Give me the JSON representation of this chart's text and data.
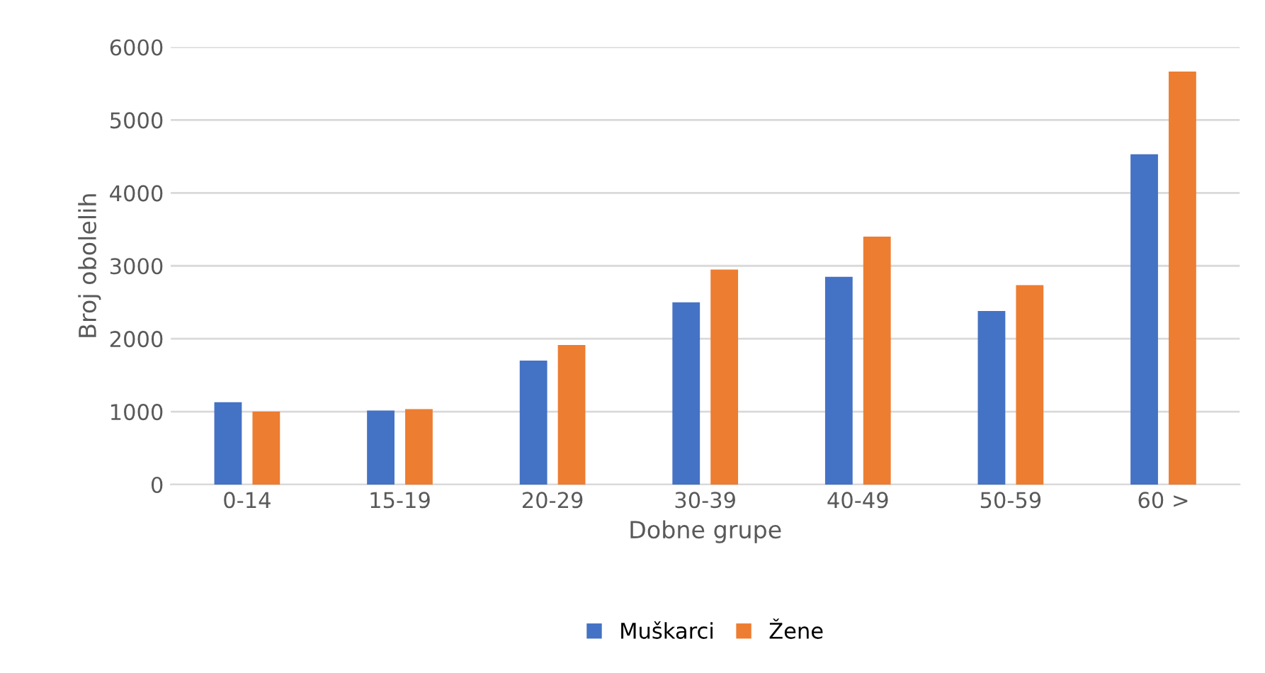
{
  "chart_data": {
    "type": "bar",
    "xlabel": "Dobne grupe",
    "ylabel": "Broj obolelih",
    "categories": [
      "0-14",
      "15-19",
      "20-29",
      "30-39",
      "40-49",
      "50-59",
      "60 >"
    ],
    "series": [
      {
        "name": "Muškarci",
        "color": "#4472c4",
        "values": [
          1130,
          1015,
          1700,
          2500,
          2850,
          2380,
          4530
        ]
      },
      {
        "name": "Žene",
        "color": "#ed7d31",
        "values": [
          1000,
          1035,
          1915,
          2950,
          3400,
          2735,
          5665
        ]
      }
    ],
    "ylim": [
      0,
      6000
    ],
    "yticks": [
      0,
      1000,
      2000,
      3000,
      4000,
      5000,
      6000
    ],
    "grid": "y",
    "legend": "bottom"
  }
}
